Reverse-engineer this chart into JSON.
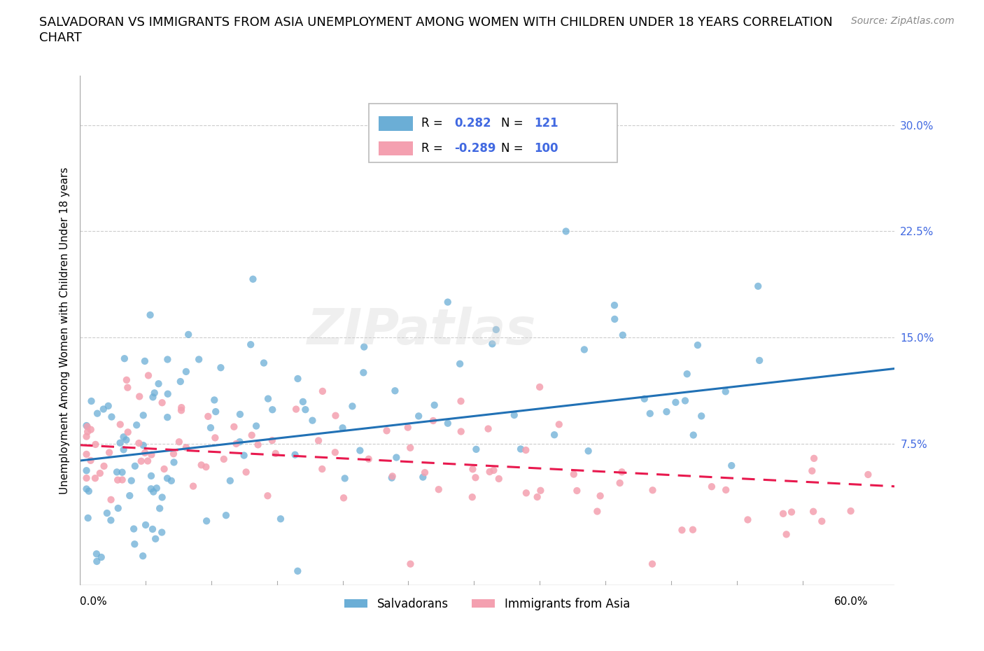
{
  "title_line1": "SALVADORAN VS IMMIGRANTS FROM ASIA UNEMPLOYMENT AMONG WOMEN WITH CHILDREN UNDER 18 YEARS CORRELATION",
  "title_line2": "CHART",
  "source_text": "Source: ZipAtlas.com",
  "ylabel": "Unemployment Among Women with Children Under 18 years",
  "xlim": [
    0.0,
    0.62
  ],
  "ylim": [
    -0.025,
    0.335
  ],
  "watermark": "ZIPatlas",
  "series": [
    {
      "name": "Salvadorans",
      "R": 0.282,
      "R_str": "0.282",
      "N": 121,
      "color": "#6baed6",
      "trend_color": "#2171b5",
      "trend_style": "solid",
      "y_trend_start": 0.063,
      "y_trend_end": 0.128
    },
    {
      "name": "Immigrants from Asia",
      "R": -0.289,
      "R_str": "-0.289",
      "N": 100,
      "color": "#f4a0b0",
      "trend_color": "#e8194e",
      "trend_style": "dashed",
      "y_trend_start": 0.074,
      "y_trend_end": 0.042
    }
  ],
  "title_fontsize": 13,
  "axis_label_fontsize": 11,
  "tick_fontsize": 11,
  "legend_fontsize": 12,
  "source_fontsize": 10,
  "background_color": "#ffffff",
  "grid_color": "#cccccc",
  "yticks": [
    0.075,
    0.15,
    0.225,
    0.3
  ],
  "ytick_labels": [
    "7.5%",
    "15.0%",
    "22.5%",
    "30.0%"
  ]
}
